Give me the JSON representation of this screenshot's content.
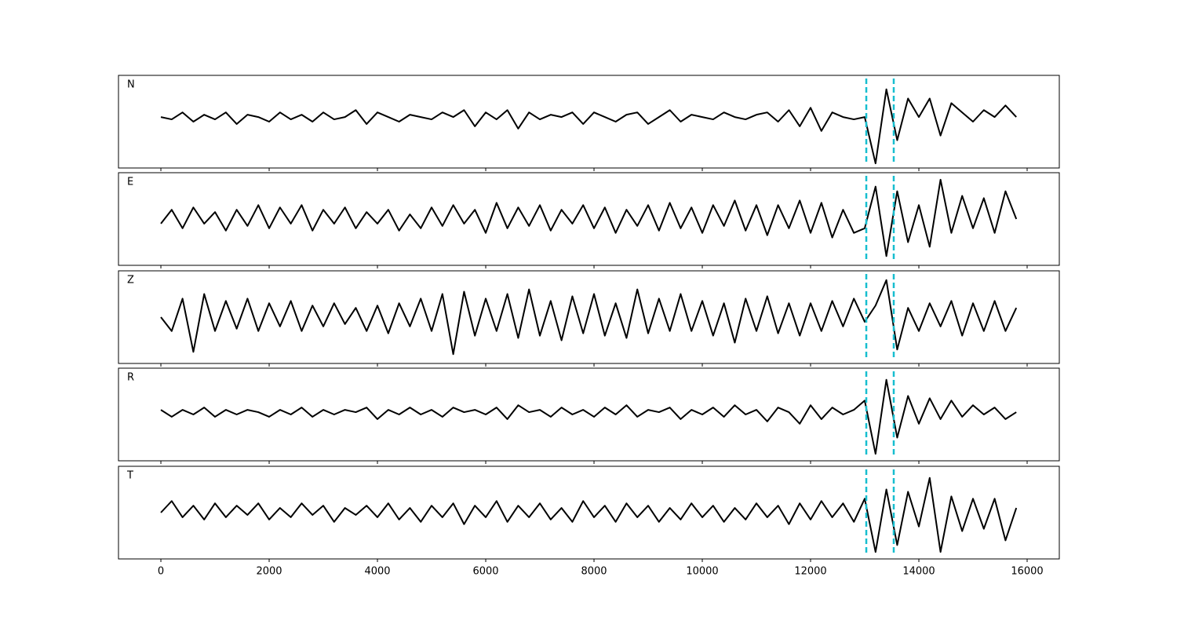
{
  "chart_data": {
    "type": "line",
    "subplots": true,
    "x": [
      0,
      200,
      400,
      600,
      800,
      1000,
      1200,
      1400,
      1600,
      1800,
      2000,
      2200,
      2400,
      2600,
      2800,
      3000,
      3200,
      3400,
      3600,
      3800,
      4000,
      4200,
      4400,
      4600,
      4800,
      5000,
      5200,
      5400,
      5600,
      5800,
      6000,
      6200,
      6400,
      6600,
      6800,
      7000,
      7200,
      7400,
      7600,
      7800,
      8000,
      8200,
      8400,
      8600,
      8800,
      9000,
      9200,
      9400,
      9600,
      9800,
      10000,
      10200,
      10400,
      10600,
      10800,
      11000,
      11200,
      11400,
      11600,
      11800,
      12000,
      12200,
      12400,
      12600,
      12800,
      13000,
      13200,
      13400,
      13600,
      13800,
      14000,
      14200,
      14400,
      14600,
      14800,
      15000,
      15200,
      15400,
      15600,
      15800
    ],
    "series": [
      {
        "name": "N",
        "color": "#000000",
        "values": [
          0.1,
          0.05,
          0.2,
          0.0,
          0.15,
          0.05,
          0.2,
          -0.05,
          0.15,
          0.1,
          0.0,
          0.2,
          0.05,
          0.15,
          0.0,
          0.2,
          0.05,
          0.1,
          0.25,
          -0.05,
          0.2,
          0.1,
          0.0,
          0.15,
          0.1,
          0.05,
          0.2,
          0.1,
          0.25,
          -0.1,
          0.2,
          0.05,
          0.25,
          -0.15,
          0.2,
          0.05,
          0.15,
          0.1,
          0.2,
          -0.05,
          0.2,
          0.1,
          0.0,
          0.15,
          0.2,
          -0.05,
          0.1,
          0.25,
          0.0,
          0.15,
          0.1,
          0.05,
          0.2,
          0.1,
          0.05,
          0.15,
          0.2,
          0.0,
          0.25,
          -0.1,
          0.3,
          -0.2,
          0.2,
          0.1,
          0.05,
          0.1,
          -0.9,
          0.7,
          -0.4,
          0.5,
          0.1,
          0.5,
          -0.3,
          0.4,
          0.2,
          0.0,
          0.25,
          0.1,
          0.35,
          0.1
        ]
      },
      {
        "name": "E",
        "color": "#000000",
        "values": [
          -0.1,
          0.2,
          -0.2,
          0.25,
          -0.1,
          0.15,
          -0.25,
          0.2,
          -0.15,
          0.3,
          -0.2,
          0.25,
          -0.1,
          0.3,
          -0.25,
          0.2,
          -0.1,
          0.25,
          -0.2,
          0.15,
          -0.1,
          0.2,
          -0.25,
          0.1,
          -0.2,
          0.25,
          -0.15,
          0.3,
          -0.1,
          0.2,
          -0.3,
          0.35,
          -0.2,
          0.25,
          -0.15,
          0.3,
          -0.25,
          0.2,
          -0.1,
          0.3,
          -0.2,
          0.25,
          -0.3,
          0.2,
          -0.15,
          0.3,
          -0.25,
          0.35,
          -0.2,
          0.25,
          -0.3,
          0.3,
          -0.15,
          0.4,
          -0.25,
          0.3,
          -0.35,
          0.3,
          -0.2,
          0.4,
          -0.3,
          0.35,
          -0.4,
          0.2,
          -0.3,
          -0.2,
          0.7,
          -0.8,
          0.6,
          -0.5,
          0.3,
          -0.6,
          0.85,
          -0.3,
          0.5,
          -0.2,
          0.45,
          -0.3,
          0.6,
          0.0
        ]
      },
      {
        "name": "Z",
        "color": "#000000",
        "values": [
          0.0,
          -0.3,
          0.4,
          -0.75,
          0.5,
          -0.3,
          0.35,
          -0.25,
          0.4,
          -0.3,
          0.3,
          -0.2,
          0.35,
          -0.3,
          0.25,
          -0.2,
          0.3,
          -0.15,
          0.2,
          -0.3,
          0.25,
          -0.35,
          0.3,
          -0.2,
          0.4,
          -0.3,
          0.5,
          -0.8,
          0.55,
          -0.4,
          0.4,
          -0.3,
          0.5,
          -0.45,
          0.6,
          -0.4,
          0.35,
          -0.5,
          0.45,
          -0.35,
          0.5,
          -0.4,
          0.3,
          -0.45,
          0.6,
          -0.35,
          0.4,
          -0.3,
          0.5,
          -0.3,
          0.35,
          -0.4,
          0.3,
          -0.55,
          0.4,
          -0.3,
          0.45,
          -0.35,
          0.3,
          -0.4,
          0.3,
          -0.3,
          0.35,
          -0.2,
          0.4,
          -0.1,
          0.25,
          0.8,
          -0.7,
          0.2,
          -0.3,
          0.3,
          -0.2,
          0.35,
          -0.4,
          0.3,
          -0.3,
          0.35,
          -0.3,
          0.2
        ]
      },
      {
        "name": "R",
        "color": "#000000",
        "values": [
          0.1,
          -0.05,
          0.1,
          0.0,
          0.15,
          -0.05,
          0.1,
          0.0,
          0.1,
          0.05,
          -0.05,
          0.1,
          0.0,
          0.15,
          -0.05,
          0.1,
          0.0,
          0.1,
          0.05,
          0.15,
          -0.1,
          0.1,
          0.0,
          0.15,
          0.0,
          0.1,
          -0.05,
          0.15,
          0.05,
          0.1,
          0.0,
          0.15,
          -0.1,
          0.2,
          0.05,
          0.1,
          -0.05,
          0.15,
          0.0,
          0.1,
          -0.05,
          0.15,
          0.0,
          0.2,
          -0.05,
          0.1,
          0.05,
          0.15,
          -0.1,
          0.1,
          0.0,
          0.15,
          -0.05,
          0.2,
          0.0,
          0.1,
          -0.15,
          0.15,
          0.05,
          -0.2,
          0.2,
          -0.1,
          0.15,
          0.0,
          0.1,
          0.3,
          -0.85,
          0.75,
          -0.5,
          0.4,
          -0.2,
          0.35,
          -0.1,
          0.3,
          -0.05,
          0.2,
          0.0,
          0.15,
          -0.1,
          0.05
        ]
      },
      {
        "name": "T",
        "color": "#000000",
        "values": [
          0.0,
          0.25,
          -0.1,
          0.15,
          -0.15,
          0.2,
          -0.1,
          0.15,
          -0.05,
          0.2,
          -0.15,
          0.1,
          -0.1,
          0.2,
          -0.05,
          0.15,
          -0.2,
          0.1,
          -0.05,
          0.15,
          -0.1,
          0.2,
          -0.15,
          0.1,
          -0.2,
          0.15,
          -0.1,
          0.2,
          -0.25,
          0.15,
          -0.1,
          0.25,
          -0.2,
          0.15,
          -0.1,
          0.2,
          -0.15,
          0.1,
          -0.2,
          0.25,
          -0.1,
          0.15,
          -0.2,
          0.2,
          -0.1,
          0.15,
          -0.2,
          0.1,
          -0.15,
          0.2,
          -0.1,
          0.15,
          -0.2,
          0.1,
          -0.15,
          0.2,
          -0.1,
          0.15,
          -0.25,
          0.2,
          -0.15,
          0.25,
          -0.1,
          0.2,
          -0.2,
          0.3,
          -0.85,
          0.5,
          -0.7,
          0.45,
          -0.3,
          0.75,
          -0.85,
          0.35,
          -0.4,
          0.3,
          -0.35,
          0.3,
          -0.6,
          0.1
        ]
      }
    ],
    "xlim": [
      -783,
      16594
    ],
    "xticks": [
      0,
      2000,
      4000,
      6000,
      8000,
      10000,
      12000,
      14000,
      16000
    ],
    "ylim": [
      -1,
      1
    ],
    "vlines": [
      13029,
      13536
    ],
    "vline_color": "#17becf",
    "vline_style": "dashed"
  }
}
